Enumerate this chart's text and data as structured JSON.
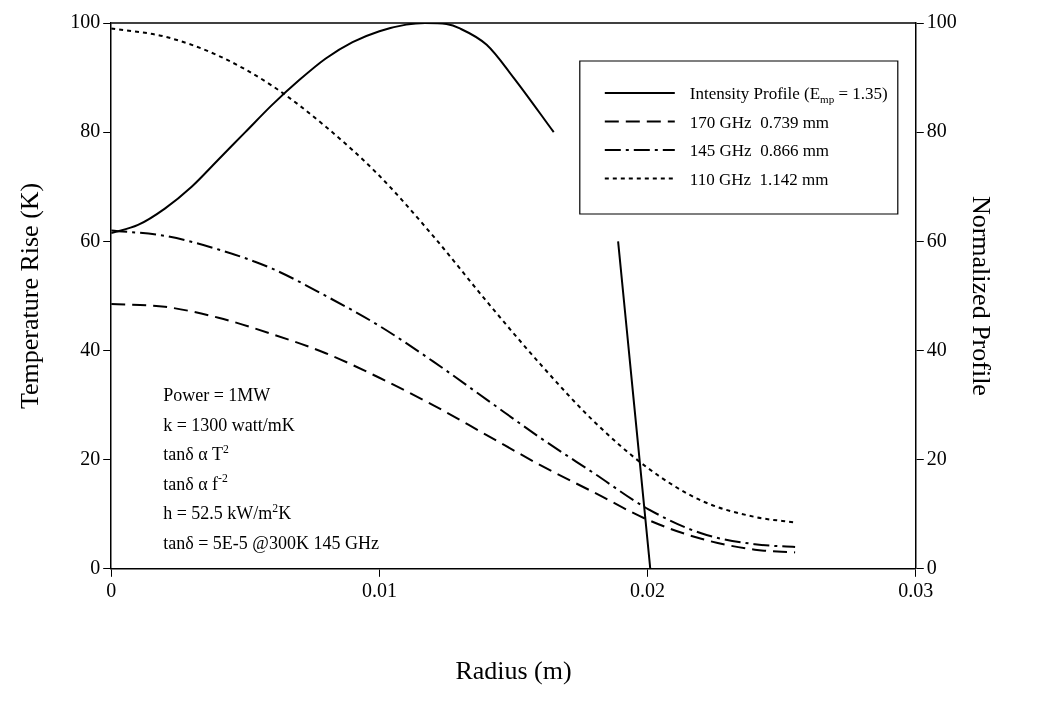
{
  "chart_data": {
    "type": "line",
    "xlabel": "Radius (m)",
    "ylabel": "Temperature Rise (K)",
    "y2label": "Normalized Profile",
    "x": [
      0,
      0.002,
      0.004,
      0.006,
      0.008,
      0.01,
      0.012,
      0.014,
      0.016,
      0.018,
      0.02,
      0.022,
      0.024,
      0.0255
    ],
    "series": [
      {
        "name": "Intensity Profile (E$_{mp}$ = 1.35)",
        "color": "#000000",
        "axis": "y2",
        "line_style": "solid",
        "x": [
          0,
          0.001,
          0.002,
          0.003,
          0.004,
          0.005,
          0.006,
          0.007,
          0.008,
          0.009,
          0.01,
          0.011,
          0.0117,
          0.0125,
          0.013,
          0.014,
          0.015,
          0.0165,
          0.0176,
          0.0189,
          0.0195,
          0.0201
        ],
        "values": [
          61.5,
          63,
          66,
          70,
          75,
          80,
          85,
          89.5,
          93.5,
          96.5,
          98.5,
          99.7,
          100,
          99.8,
          99,
          96,
          90,
          80,
          null,
          60,
          30,
          0
        ]
      },
      {
        "name": "170 GHz  0.739 mm",
        "color": "#000000",
        "line_style": "dashed",
        "values": [
          48.5,
          48,
          46,
          43,
          39.5,
          35,
          30,
          24.5,
          19,
          14,
          9,
          5.5,
          3.5,
          3
        ]
      },
      {
        "name": "145 GHz  0.866 mm",
        "color": "#000000",
        "line_style": "dashdot",
        "values": [
          62,
          61,
          58.5,
          55,
          50,
          44.5,
          38,
          31,
          24,
          17.5,
          11,
          6.5,
          4.5,
          4
        ]
      },
      {
        "name": "110 GHz  1.142 mm",
        "color": "#000000",
        "line_style": "dotted",
        "values": [
          99,
          97.5,
          94,
          88.5,
          81,
          72,
          61,
          49,
          37.5,
          27,
          18.5,
          12.5,
          9.5,
          8.5
        ]
      }
    ],
    "xlim": [
      0,
      0.03
    ],
    "xticks": [
      0,
      0.01,
      0.02,
      0.03
    ],
    "ylim": [
      0,
      100
    ],
    "yticks": [
      0,
      20,
      40,
      60,
      80,
      100
    ],
    "y2lim": [
      0,
      100
    ],
    "y2ticks": [
      0,
      20,
      40,
      60,
      80,
      100
    ],
    "grid": false,
    "legend": "top right",
    "marker": "none",
    "annotations": [
      "Power = 1MW",
      "k = 1300 watt/mK",
      "tanδ α T$^{2}$",
      "tanδ α f$^{-2}$",
      "h = 52.5 kW/m$^{2}$K",
      "tanδ = 5E-5 @300K 145 GHz"
    ]
  }
}
